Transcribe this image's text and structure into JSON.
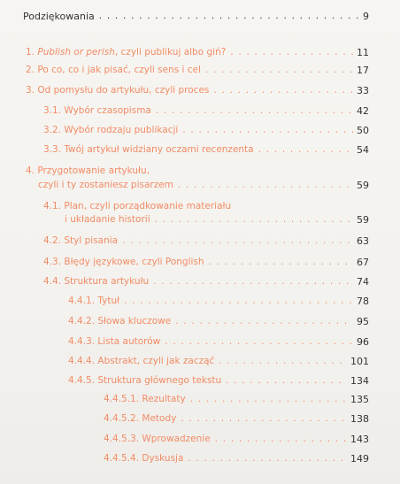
{
  "toc": {
    "entries": [
      {
        "label": "Podziękowania",
        "page": "9"
      },
      {
        "label_italic": "Publish or perish",
        "label_rest": ", czyli publikuj albo giń?",
        "label_prefix": "1. ",
        "page": "11"
      },
      {
        "label": "2. Po co, co i jak pisać, czyli sens i cel",
        "page": "17"
      },
      {
        "label": "3. Od pomysłu do artykułu, czyli proces",
        "page": "33"
      },
      {
        "label": "3.1. Wybór czasopisma",
        "page": "42"
      },
      {
        "label": "3.2. Wybór rodzaju publikacji",
        "page": "50"
      },
      {
        "label": "3.3. Twój artykuł widziany oczami recenzenta",
        "page": "54"
      },
      {
        "label_line1": "4. Przygotowanie artykułu,",
        "label": "czyli i ty zostaniesz pisarzem",
        "page": "59"
      },
      {
        "label_line1": "4.1. Plan, czyli porządkowanie materiału",
        "label": "i układanie historii",
        "page": "59"
      },
      {
        "label": "4.2. Styl pisania",
        "page": "63"
      },
      {
        "label": "4.3. Błędy językowe, czyli Ponglish",
        "page": "67"
      },
      {
        "label": "4.4. Struktura artykułu",
        "page": "74"
      },
      {
        "label": "4.4.1. Tytuł",
        "page": "78"
      },
      {
        "label": "4.4.2. Słowa kluczowe",
        "page": "95"
      },
      {
        "label": "4.4.3. Lista autorów",
        "page": "96"
      },
      {
        "label": "4.4.4. Abstrakt, czyli jak zacząć",
        "page": "101"
      },
      {
        "label": "4.4.5. Struktura głównego tekstu",
        "page": "134"
      },
      {
        "label": "4.4.5.1. Rezultaty",
        "page": "135"
      },
      {
        "label": "4.4.5.2. Metody",
        "page": "138"
      },
      {
        "label": "4.4.5.3. Wprowadzenie",
        "page": "143"
      },
      {
        "label": "4.4.5.4. Dyskusja",
        "page": "149"
      }
    ]
  },
  "colors": {
    "accent": "#f08c67",
    "text": "#333333",
    "paper": "#f6f4f0"
  }
}
